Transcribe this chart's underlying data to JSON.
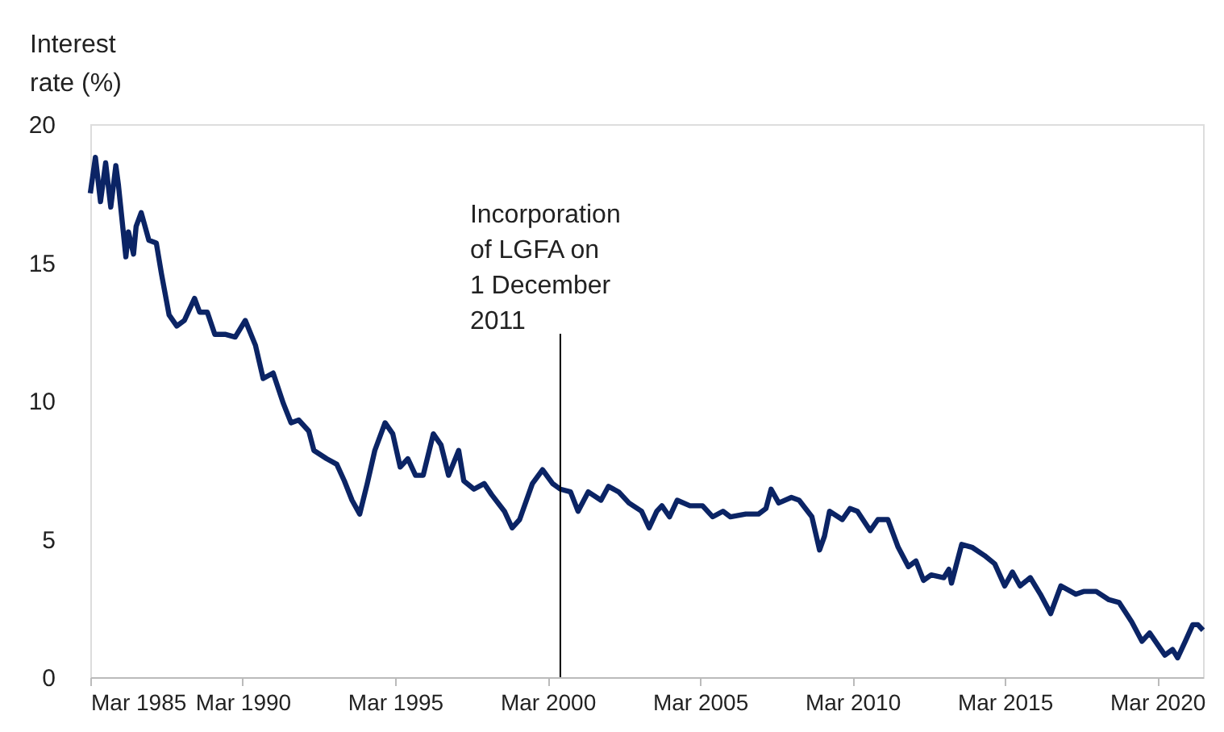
{
  "chart_data": {
    "type": "line",
    "ylabel": "Interest rate (%)",
    "x": [
      "1985-03",
      "1985-05",
      "1985-07",
      "1985-09",
      "1985-11",
      "1986-01",
      "1986-02",
      "1986-05",
      "1986-06",
      "1986-08",
      "1986-09",
      "1986-11",
      "1987-02",
      "1987-05",
      "1987-07",
      "1987-10",
      "1988-01",
      "1988-04",
      "1988-08",
      "1988-10",
      "1989-01",
      "1989-04",
      "1989-08",
      "1989-12",
      "1990-04",
      "1990-08",
      "1990-11",
      "1991-03",
      "1991-07",
      "1991-10",
      "1992-01",
      "1992-05",
      "1992-07",
      "1992-12",
      "1993-04",
      "1993-07",
      "1993-10",
      "1994-01",
      "1994-04",
      "1994-07",
      "1994-11",
      "1995-02",
      "1995-05",
      "1995-08",
      "1995-11",
      "1996-02",
      "1996-06",
      "1996-09",
      "1996-12",
      "1997-04",
      "1997-06",
      "1997-10",
      "1998-02",
      "1998-05",
      "1998-10",
      "1999-01",
      "1999-04",
      "1999-09",
      "2000-01",
      "2000-05",
      "2000-08",
      "2000-12",
      "2001-03",
      "2001-07",
      "2001-12",
      "2002-03",
      "2002-07",
      "2002-11",
      "2003-04",
      "2003-07",
      "2003-10",
      "2003-12",
      "2004-03",
      "2004-06",
      "2004-11",
      "2005-04",
      "2005-08",
      "2005-12",
      "2006-03",
      "2006-09",
      "2007-02",
      "2007-05",
      "2007-07",
      "2007-10",
      "2008-03",
      "2008-06",
      "2008-11",
      "2009-02",
      "2009-04",
      "2009-06",
      "2009-11",
      "2010-02",
      "2010-05",
      "2010-10",
      "2011-01",
      "2011-05",
      "2011-09",
      "2012-01",
      "2012-04",
      "2012-07",
      "2012-10",
      "2013-03",
      "2013-05",
      "2013-06",
      "2013-10",
      "2014-02",
      "2014-07",
      "2014-11",
      "2015-03",
      "2015-06",
      "2015-09",
      "2016-01",
      "2016-05",
      "2016-09",
      "2017-01",
      "2017-07",
      "2017-10",
      "2018-03",
      "2018-08",
      "2018-12",
      "2019-05",
      "2019-09",
      "2019-12",
      "2020-06",
      "2020-09",
      "2020-11",
      "2021-02",
      "2021-05",
      "2021-07",
      "2021-09"
    ],
    "series": [
      {
        "color": "#0b2465",
        "values": [
          17.5,
          18.8,
          17.2,
          18.6,
          17.0,
          18.5,
          17.8,
          15.2,
          16.1,
          15.3,
          16.3,
          16.8,
          15.8,
          15.7,
          14.6,
          13.1,
          12.7,
          12.9,
          13.7,
          13.2,
          13.2,
          12.4,
          12.4,
          12.3,
          12.9,
          12.0,
          10.8,
          11.0,
          9.9,
          9.2,
          9.3,
          8.9,
          8.2,
          7.9,
          7.7,
          7.1,
          6.4,
          5.9,
          7.0,
          8.2,
          9.2,
          8.8,
          7.6,
          7.9,
          7.3,
          7.3,
          8.8,
          8.4,
          7.3,
          8.2,
          7.1,
          6.8,
          7.0,
          6.6,
          6.0,
          5.4,
          5.7,
          7.0,
          7.5,
          7.0,
          6.8,
          6.7,
          6.0,
          6.7,
          6.4,
          6.9,
          6.7,
          6.3,
          6.0,
          5.4,
          6.0,
          6.2,
          5.8,
          6.4,
          6.2,
          6.2,
          5.8,
          6.0,
          5.8,
          5.9,
          5.9,
          6.1,
          6.8,
          6.3,
          6.5,
          6.4,
          5.8,
          4.6,
          5.1,
          6.0,
          5.7,
          6.1,
          6.0,
          5.3,
          5.7,
          5.7,
          4.7,
          4.0,
          4.2,
          3.5,
          3.7,
          3.6,
          3.9,
          3.4,
          4.8,
          4.7,
          4.4,
          4.1,
          3.3,
          3.8,
          3.3,
          3.6,
          3.0,
          2.3,
          3.3,
          3.0,
          3.1,
          3.1,
          2.8,
          2.7,
          2.0,
          1.3,
          1.6,
          0.8,
          1.0,
          0.7,
          1.3,
          1.9,
          1.9,
          1.7
        ]
      }
    ],
    "xlim": [
      "1985-03",
      "2021-09"
    ],
    "ylim": [
      0,
      20
    ],
    "yticks": [
      0,
      5,
      10,
      15,
      20
    ],
    "xticks": [
      {
        "value": "1985-03",
        "label": "Mar 1985"
      },
      {
        "value": "1990-03",
        "label": "Mar 1990"
      },
      {
        "value": "1995-03",
        "label": "Mar 1995"
      },
      {
        "value": "2000-03",
        "label": "Mar 2000"
      },
      {
        "value": "2005-03",
        "label": "Mar 2005"
      },
      {
        "value": "2010-03",
        "label": "Mar 2010"
      },
      {
        "value": "2015-03",
        "label": "Mar 2015"
      },
      {
        "value": "2020-03",
        "label": "Mar 2020"
      }
    ],
    "ref_lines": [
      {
        "axis": "x",
        "value": "2000-08",
        "label": "Incorporation of LGFA on 1 December 2011",
        "color": "#000000"
      }
    ],
    "grid": false,
    "marker": "none",
    "line_style": "solid"
  }
}
